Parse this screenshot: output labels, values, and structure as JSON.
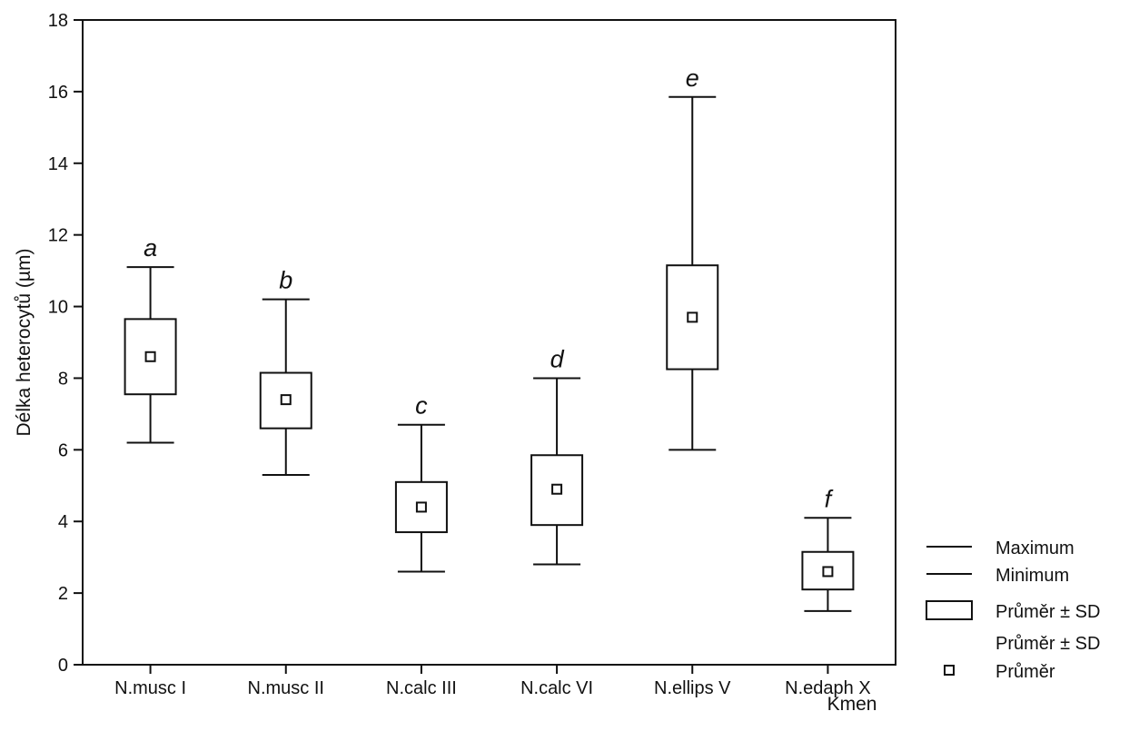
{
  "chart_data": {
    "type": "box",
    "xlabel": "Kmen",
    "ylabel": "Délka heterocytů (µm)",
    "ylim": [
      0,
      18
    ],
    "yticks": [
      0,
      2,
      4,
      6,
      8,
      10,
      12,
      14,
      16,
      18
    ],
    "grid": false,
    "legend_position": "bottom-right",
    "categories": [
      "N.musc I",
      "N.musc II",
      "N.calc III",
      "N.calc VI",
      "N.ellips V",
      "N.edaph X"
    ],
    "series": [
      {
        "category": "N.musc I",
        "mean": 8.6,
        "sd_low": 7.55,
        "sd_high": 9.65,
        "min": 6.2,
        "max": 11.1,
        "group": "a"
      },
      {
        "category": "N.musc II",
        "mean": 7.4,
        "sd_low": 6.6,
        "sd_high": 8.15,
        "min": 5.3,
        "max": 10.2,
        "group": "b"
      },
      {
        "category": "N.calc III",
        "mean": 4.4,
        "sd_low": 3.7,
        "sd_high": 5.1,
        "min": 2.6,
        "max": 6.7,
        "group": "c"
      },
      {
        "category": "N.calc VI",
        "mean": 4.9,
        "sd_low": 3.9,
        "sd_high": 5.85,
        "min": 2.8,
        "max": 8.0,
        "group": "d"
      },
      {
        "category": "N.ellips V",
        "mean": 9.7,
        "sd_low": 8.25,
        "sd_high": 11.15,
        "min": 6.0,
        "max": 15.85,
        "group": "e"
      },
      {
        "category": "N.edaph X",
        "mean": 2.6,
        "sd_low": 2.1,
        "sd_high": 3.15,
        "min": 1.5,
        "max": 4.1,
        "group": "f"
      }
    ],
    "legend": [
      {
        "symbol": "line",
        "label": "Maximum"
      },
      {
        "symbol": "line",
        "label": "Minimum"
      },
      {
        "symbol": "box",
        "label": "Průměr ± SD"
      },
      {
        "symbol": "none",
        "label": "Průměr ± SD"
      },
      {
        "symbol": "square",
        "label": "Průměr"
      }
    ]
  }
}
